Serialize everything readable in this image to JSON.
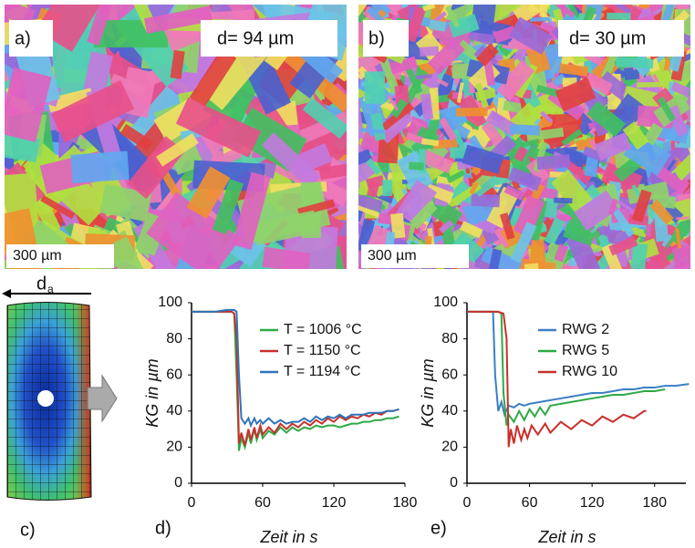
{
  "panels": {
    "a_label": "a)",
    "a_size": "d= 94 µm",
    "a_scale": "300 µm",
    "b_label": "b)",
    "b_size": "d= 30 µm",
    "b_scale": "300 µm",
    "c_label": "c)",
    "c_arrow": "d",
    "c_arrow_sub": "a"
  },
  "chart_data": [
    {
      "type": "line",
      "panel_label": "d)",
      "xlabel": "Zeit in s",
      "ylabel": "KG in µm",
      "xlim": [
        0,
        180
      ],
      "xticks": [
        0,
        60,
        120,
        180
      ],
      "ylim": [
        0,
        100
      ],
      "yticks": [
        0,
        20,
        40,
        60,
        80,
        100
      ],
      "grid": false,
      "legend": "upper-right",
      "x": [
        0,
        10,
        20,
        30,
        34,
        36,
        38,
        40,
        42,
        45,
        48,
        50,
        53,
        55,
        58,
        60,
        65,
        70,
        75,
        80,
        85,
        90,
        95,
        100,
        105,
        110,
        115,
        120,
        125,
        130,
        135,
        140,
        145,
        150,
        155,
        160,
        165,
        170,
        175
      ],
      "series": [
        {
          "name": "T = 1006 °C",
          "color": "#2eaa45",
          "values": [
            95,
            95,
            95,
            95,
            95,
            94,
            60,
            18,
            25,
            20,
            28,
            22,
            30,
            24,
            30,
            25,
            29,
            27,
            31,
            28,
            31,
            29,
            31,
            30,
            32,
            31,
            32,
            32,
            31,
            32,
            33,
            33,
            34,
            34,
            35,
            35,
            36,
            36,
            37
          ]
        },
        {
          "name": "T = 1150 °C",
          "color": "#c8302c",
          "values": [
            95,
            95,
            95,
            95,
            95,
            94,
            80,
            22,
            28,
            21,
            30,
            24,
            31,
            25,
            32,
            27,
            31,
            28,
            33,
            30,
            33,
            31,
            34,
            32,
            35,
            33,
            36,
            34,
            37,
            35,
            37,
            36,
            38,
            37,
            39,
            38,
            40,
            40,
            41
          ]
        },
        {
          "name": "T = 1194 °C",
          "color": "#2f74b8",
          "values": [
            95,
            95,
            95,
            96,
            96,
            96,
            95,
            60,
            36,
            33,
            36,
            32,
            36,
            33,
            35,
            33,
            36,
            33,
            35,
            33,
            34,
            34,
            36,
            34,
            37,
            35,
            37,
            36,
            38,
            36,
            38,
            38,
            38,
            39,
            39,
            39,
            40,
            40,
            41
          ]
        }
      ]
    },
    {
      "type": "line",
      "panel_label": "e)",
      "xlabel": "Zeit in s",
      "ylabel": "KG in µm",
      "xlim": [
        0,
        210
      ],
      "xticks": [
        0,
        60,
        120,
        180
      ],
      "ylim": [
        0,
        100
      ],
      "yticks": [
        0,
        20,
        40,
        60,
        80,
        100
      ],
      "grid": false,
      "legend": "upper-right",
      "series": [
        {
          "name": "RWG 2",
          "color": "#3b7fc4",
          "x": [
            0,
            20,
            25,
            27,
            30,
            33,
            36,
            40,
            45,
            50,
            55,
            60,
            70,
            80,
            90,
            100,
            110,
            120,
            130,
            140,
            150,
            160,
            170,
            180,
            190,
            200,
            213
          ],
          "values": [
            95,
            95,
            95,
            60,
            40,
            45,
            38,
            43,
            42,
            44,
            43,
            44,
            45,
            46,
            47,
            48,
            49,
            50,
            50,
            51,
            52,
            52,
            53,
            53,
            54,
            54,
            55
          ]
        },
        {
          "name": "RWG 5",
          "color": "#2eaa45",
          "x": [
            0,
            25,
            30,
            33,
            35,
            38,
            40,
            45,
            50,
            55,
            60,
            65,
            70,
            75,
            80,
            90,
            100,
            110,
            120,
            130,
            140,
            150,
            160,
            170,
            180,
            190
          ],
          "values": [
            95,
            95,
            95,
            94,
            50,
            32,
            38,
            34,
            40,
            35,
            41,
            37,
            42,
            38,
            43,
            44,
            45,
            46,
            47,
            48,
            49,
            49,
            50,
            51,
            51,
            52
          ]
        },
        {
          "name": "RWG 10",
          "color": "#c8302c",
          "x": [
            0,
            30,
            35,
            38,
            40,
            42,
            45,
            48,
            52,
            55,
            58,
            62,
            68,
            75,
            80,
            90,
            100,
            110,
            120,
            130,
            140,
            150,
            160,
            170,
            172
          ],
          "values": [
            95,
            95,
            94,
            80,
            20,
            30,
            22,
            32,
            24,
            30,
            25,
            32,
            27,
            33,
            28,
            34,
            30,
            35,
            32,
            37,
            34,
            38,
            36,
            40,
            40
          ]
        }
      ]
    }
  ]
}
